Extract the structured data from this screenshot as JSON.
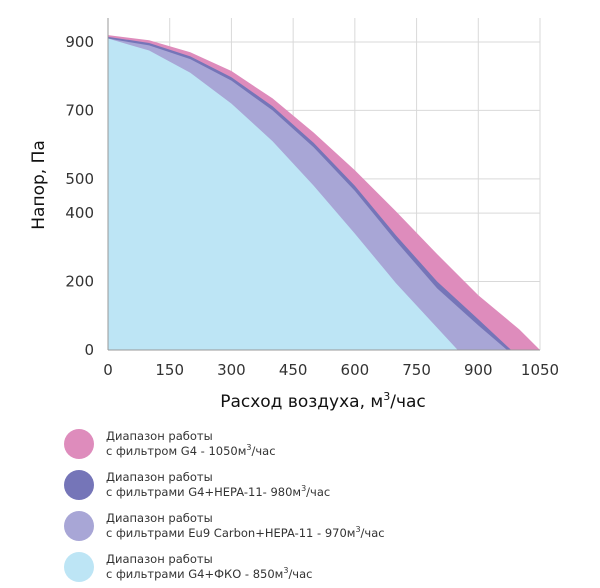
{
  "chart_data": {
    "type": "area",
    "xlabel": "Расход воздуха, м",
    "xlabel_sup": "3",
    "xlabel_suffix": "/час",
    "ylabel": "Напор, Па",
    "xlim": [
      0,
      1050
    ],
    "ylim": [
      0,
      970
    ],
    "x_ticks": [
      0,
      150,
      300,
      450,
      600,
      750,
      900,
      1050
    ],
    "y_ticks": [
      0,
      200,
      400,
      500,
      700,
      900
    ],
    "grid": true,
    "series": [
      {
        "name": "Диапазон работы с фильтром G4 - 1050м3/час",
        "color": "#de8cbc",
        "points": [
          [
            0,
            920
          ],
          [
            100,
            905
          ],
          [
            200,
            870
          ],
          [
            300,
            815
          ],
          [
            400,
            735
          ],
          [
            500,
            635
          ],
          [
            600,
            525
          ],
          [
            700,
            405
          ],
          [
            800,
            280
          ],
          [
            900,
            160
          ],
          [
            1000,
            60
          ],
          [
            1050,
            0
          ]
        ]
      },
      {
        "name": "Диапазон работы с фильтрами G4+HEPA-11- 980м3/час",
        "color": "#7575b8",
        "points": [
          [
            0,
            915
          ],
          [
            100,
            897
          ],
          [
            200,
            858
          ],
          [
            300,
            797
          ],
          [
            400,
            712
          ],
          [
            500,
            605
          ],
          [
            600,
            480
          ],
          [
            700,
            335
          ],
          [
            800,
            200
          ],
          [
            900,
            90
          ],
          [
            980,
            0
          ]
        ]
      },
      {
        "name": "Диапазон работы с фильтрами Eu9 Carbon+HEPA-11 - 970м3/час",
        "color": "#a8a6d6",
        "points": [
          [
            0,
            910
          ],
          [
            100,
            890
          ],
          [
            200,
            850
          ],
          [
            300,
            787
          ],
          [
            400,
            700
          ],
          [
            500,
            592
          ],
          [
            600,
            465
          ],
          [
            700,
            318
          ],
          [
            800,
            180
          ],
          [
            900,
            72
          ],
          [
            970,
            0
          ]
        ]
      },
      {
        "name": "Диапазон работы с фильтрами G4+ФКО - 850м3/час",
        "color": "#bde5f5",
        "points": [
          [
            0,
            910
          ],
          [
            100,
            875
          ],
          [
            200,
            810
          ],
          [
            300,
            720
          ],
          [
            400,
            610
          ],
          [
            500,
            480
          ],
          [
            600,
            340
          ],
          [
            700,
            195
          ],
          [
            800,
            65
          ],
          [
            850,
            0
          ]
        ]
      }
    ]
  },
  "legend": {
    "items": [
      {
        "line1": "Диапазон  работы",
        "line2": "с фильтром G4 - 1050м",
        "sup": "3",
        "suffix": "/час",
        "color": "#de8cbc"
      },
      {
        "line1": "Диапазон  работы",
        "line2": "с фильтрами G4+HEPA-11- 980м",
        "sup": "3",
        "suffix": "/час",
        "color": "#7575b8"
      },
      {
        "line1": "Диапазон  работы",
        "line2": "с фильтрами Eu9 Carbon+HEPA-11 - 970м",
        "sup": "3",
        "suffix": "/час",
        "color": "#a8a6d6"
      },
      {
        "line1": "Диапазон  работы",
        "line2": "с фильтрами G4+ФКО - 850м",
        "sup": "3",
        "suffix": "/час",
        "color": "#bde5f5"
      }
    ]
  }
}
